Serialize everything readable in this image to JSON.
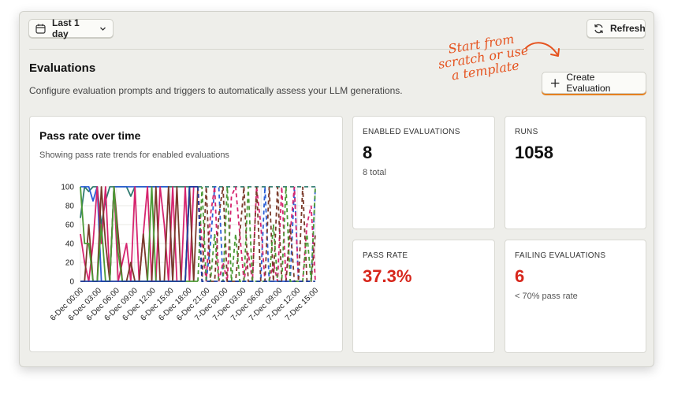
{
  "toolbar": {
    "date_range_label": "Last 1 day",
    "refresh_label": "Refresh"
  },
  "header": {
    "title": "Evaluations",
    "description": "Configure evaluation prompts and triggers to automatically assess your LLM generations.",
    "create_label": "Create Evaluation",
    "hint_text": "Start from scratch or use a template"
  },
  "chart_card": {
    "title": "Pass rate over time",
    "subtitle": "Showing pass rate trends for enabled evaluations"
  },
  "metrics": {
    "enabled": {
      "label": "ENABLED EVALUATIONS",
      "value": "8",
      "sub": "8 total"
    },
    "runs": {
      "label": "RUNS",
      "value": "1058"
    },
    "pass_rate": {
      "label": "PASS RATE",
      "value": "37.3%"
    },
    "failing": {
      "label": "FAILING EVALUATIONS",
      "value": "6",
      "sub": "< 70% pass rate"
    }
  },
  "colors": {
    "accent": "#e5531f",
    "danger": "#d7261b",
    "button_underline": "#e5801f"
  },
  "icons": {
    "date_range": "calendar-icon",
    "dropdown": "chevron-down-icon",
    "refresh": "refresh-icon",
    "create": "plus-icon"
  },
  "chart_data": {
    "type": "line",
    "title": "",
    "xlabel": "",
    "ylabel": "",
    "ylim": [
      0,
      100
    ],
    "yticks": [
      0,
      20,
      40,
      60,
      80,
      100
    ],
    "x_tick_labels": [
      "6-Dec 00:00",
      "6-Dec 03:00",
      "6-Dec 06:00",
      "6-Dec 09:00",
      "6-Dec 12:00",
      "6-Dec 15:00",
      "6-Dec 18:00",
      "6-Dec 21:00",
      "7-Dec 00:00",
      "7-Dec 03:00",
      "7-Dec 06:00",
      "7-Dec 09:00",
      "7-Dec 12:00",
      "7-Dec 15:00"
    ],
    "solid_until_index": 28,
    "grid": true,
    "series": [
      {
        "color": "#2f7a6f",
        "values": [
          67,
          100,
          95,
          100,
          100,
          60,
          85,
          100,
          100,
          100,
          100,
          100,
          90,
          100,
          100,
          100,
          100,
          100,
          100,
          100,
          100,
          100,
          100,
          100,
          100,
          100,
          100,
          100,
          100,
          100,
          100,
          100,
          100,
          100,
          100,
          100,
          100,
          100,
          100,
          100,
          100,
          100,
          100,
          100,
          100,
          100,
          100,
          100,
          100,
          100,
          100,
          100,
          100,
          100,
          100,
          100,
          100
        ]
      },
      {
        "color": "#2b5fd6",
        "values": [
          100,
          100,
          100,
          85,
          100,
          0,
          0,
          0,
          100,
          100,
          100,
          100,
          100,
          100,
          100,
          100,
          100,
          100,
          100,
          100,
          100,
          100,
          0,
          0,
          0,
          0,
          100,
          100,
          100,
          0,
          0,
          40,
          100,
          100,
          0,
          0,
          0,
          0,
          0,
          0,
          0,
          0,
          0,
          0,
          100,
          0,
          0,
          0,
          0,
          0,
          0,
          100,
          0,
          0,
          0,
          0,
          100
        ]
      },
      {
        "color": "#d6246e",
        "values": [
          50,
          20,
          0,
          40,
          100,
          40,
          100,
          0,
          100,
          0,
          20,
          40,
          0,
          100,
          0,
          50,
          100,
          0,
          0,
          100,
          60,
          0,
          100,
          0,
          0,
          100,
          0,
          100,
          100,
          40,
          0,
          70,
          100,
          0,
          20,
          0,
          90,
          100,
          50,
          0,
          30,
          0,
          100,
          60,
          0,
          0,
          20,
          0,
          100,
          0,
          50,
          100,
          0,
          0,
          60,
          80,
          0
        ]
      },
      {
        "color": "#7a3a2a",
        "values": [
          0,
          0,
          60,
          0,
          0,
          100,
          40,
          0,
          100,
          50,
          0,
          0,
          20,
          0,
          0,
          50,
          0,
          0,
          100,
          0,
          0,
          100,
          0,
          100,
          0,
          0,
          100,
          0,
          100,
          0,
          100,
          0,
          0,
          70,
          100,
          0,
          0,
          0,
          50,
          100,
          0,
          0,
          100,
          0,
          0,
          100,
          0,
          100,
          0,
          0,
          60,
          0,
          0,
          100,
          0,
          0,
          50
        ]
      },
      {
        "color": "#4b9a35",
        "values": [
          100,
          40,
          40,
          0,
          0,
          60,
          0,
          0,
          100,
          30,
          0,
          0,
          0,
          0,
          0,
          0,
          0,
          100,
          0,
          0,
          0,
          0,
          0,
          0,
          0,
          0,
          0,
          0,
          0,
          100,
          0,
          0,
          50,
          0,
          0,
          100,
          0,
          50,
          0,
          0,
          100,
          0,
          0,
          0,
          0,
          0,
          60,
          0,
          0,
          100,
          0,
          0,
          0,
          0,
          50,
          0,
          100
        ]
      },
      {
        "color": "#1d3fa0",
        "values": [
          0,
          0,
          0,
          0,
          0,
          0,
          0,
          0,
          0,
          0,
          0,
          0,
          0,
          0,
          0,
          0,
          0,
          0,
          0,
          0,
          0,
          0,
          0,
          0,
          0,
          0,
          100,
          100,
          100,
          0,
          0,
          0,
          0,
          0,
          0,
          0,
          0,
          0,
          0,
          0,
          0,
          0,
          0,
          0,
          0,
          0,
          0,
          0,
          0,
          0,
          0,
          0,
          0,
          0,
          0,
          0,
          0
        ]
      }
    ]
  }
}
